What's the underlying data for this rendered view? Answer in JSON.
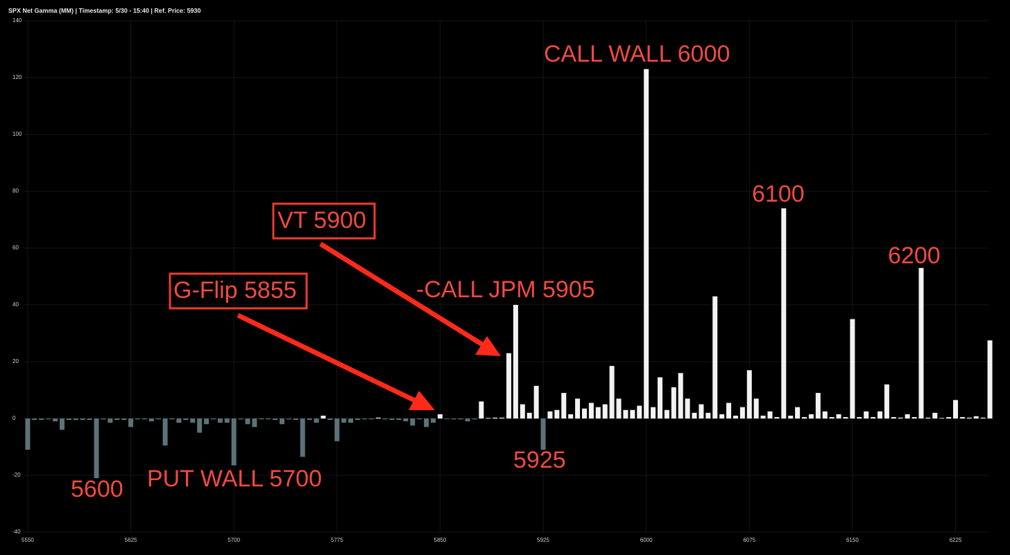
{
  "chart_data": {
    "type": "bar",
    "title": "SPX Net Gamma (MM) | Timestamp: 5/30 - 15:40  | Ref. Price: 5930",
    "x": [
      5550,
      5555,
      5560,
      5565,
      5570,
      5575,
      5580,
      5585,
      5590,
      5595,
      5600,
      5605,
      5610,
      5615,
      5620,
      5625,
      5630,
      5635,
      5640,
      5645,
      5650,
      5655,
      5660,
      5665,
      5670,
      5675,
      5680,
      5685,
      5690,
      5695,
      5700,
      5705,
      5710,
      5715,
      5720,
      5725,
      5730,
      5735,
      5740,
      5745,
      5750,
      5755,
      5760,
      5765,
      5770,
      5775,
      5780,
      5785,
      5790,
      5795,
      5800,
      5805,
      5810,
      5815,
      5820,
      5825,
      5830,
      5835,
      5840,
      5845,
      5850,
      5855,
      5860,
      5865,
      5870,
      5875,
      5880,
      5885,
      5890,
      5895,
      5900,
      5905,
      5910,
      5915,
      5920,
      5925,
      5930,
      5935,
      5940,
      5945,
      5950,
      5955,
      5960,
      5965,
      5970,
      5975,
      5980,
      5985,
      5990,
      5995,
      6000,
      6005,
      6010,
      6015,
      6020,
      6025,
      6030,
      6035,
      6040,
      6045,
      6050,
      6055,
      6060,
      6065,
      6070,
      6075,
      6080,
      6085,
      6090,
      6095,
      6100,
      6105,
      6110,
      6115,
      6120,
      6125,
      6130,
      6135,
      6140,
      6145,
      6150,
      6155,
      6160,
      6165,
      6170,
      6175,
      6180,
      6185,
      6190,
      6195,
      6200,
      6205,
      6210,
      6215,
      6220,
      6225,
      6230,
      6235,
      6240,
      6245,
      6250
    ],
    "values": [
      -11,
      -0.5,
      -0.5,
      -0.3,
      -1,
      -4,
      -0.5,
      -0.5,
      -0.5,
      -0.5,
      -21,
      -0.3,
      -1.5,
      -0.5,
      -0.5,
      -3,
      -0.3,
      -0.3,
      -1,
      -0.3,
      -9.5,
      -0.3,
      -1.5,
      -0.5,
      -1.5,
      -5,
      -2,
      -0.3,
      -1.5,
      -1.5,
      -16.5,
      -0.3,
      -2,
      -3,
      -0.3,
      -0.3,
      -0.5,
      -2,
      -0.3,
      -0.5,
      -13.5,
      -0.5,
      -1.5,
      1,
      -0.5,
      -8,
      -1.5,
      -1.5,
      -0.5,
      -0.3,
      -0.3,
      0.3,
      -0.3,
      -0.5,
      -0.5,
      -1,
      -2.5,
      -0.3,
      -3,
      -1.5,
      1.5,
      -0.2,
      -0.3,
      -0.3,
      -1,
      -0.3,
      6,
      0.2,
      0.3,
      0.3,
      23,
      40,
      5,
      2,
      11.5,
      -11,
      2.5,
      3,
      9,
      1.5,
      7,
      3.5,
      5.5,
      4,
      5,
      18.5,
      7,
      3,
      3,
      4.5,
      123,
      4,
      14.5,
      3,
      11,
      16,
      7,
      2,
      5,
      2,
      43,
      1.5,
      5.5,
      1,
      4,
      17,
      7,
      1,
      2.5,
      0.5,
      74,
      1,
      4,
      0.5,
      1.5,
      9,
      2.5,
      0.5,
      1.5,
      0.5,
      35,
      0.5,
      2.5,
      0.5,
      2.5,
      12,
      0.5,
      0.3,
      1.5,
      0.5,
      53,
      0.3,
      2,
      0.2,
      0.5,
      6.5,
      0.5,
      0.3,
      0.8,
      0.3,
      27.5
    ],
    "color_positive": "#f2f2f2",
    "color_negative": "#5c7278",
    "xlim": [
      5547.5,
      6252.5
    ],
    "xticks": [
      5550,
      5625,
      5700,
      5775,
      5850,
      5925,
      6000,
      6075,
      6150,
      6225
    ],
    "ylim": [
      -40,
      140
    ],
    "yticks": [
      -40,
      -20,
      0,
      20,
      40,
      60,
      80,
      100,
      120,
      140
    ],
    "grid": true,
    "annotations": [
      "CALL WALL 6000",
      "6100",
      "6200",
      "VT 5900",
      "G-Flip 5855",
      "-CALL JPM 5905",
      "5925",
      "5600",
      "PUT WALL 5700"
    ]
  }
}
